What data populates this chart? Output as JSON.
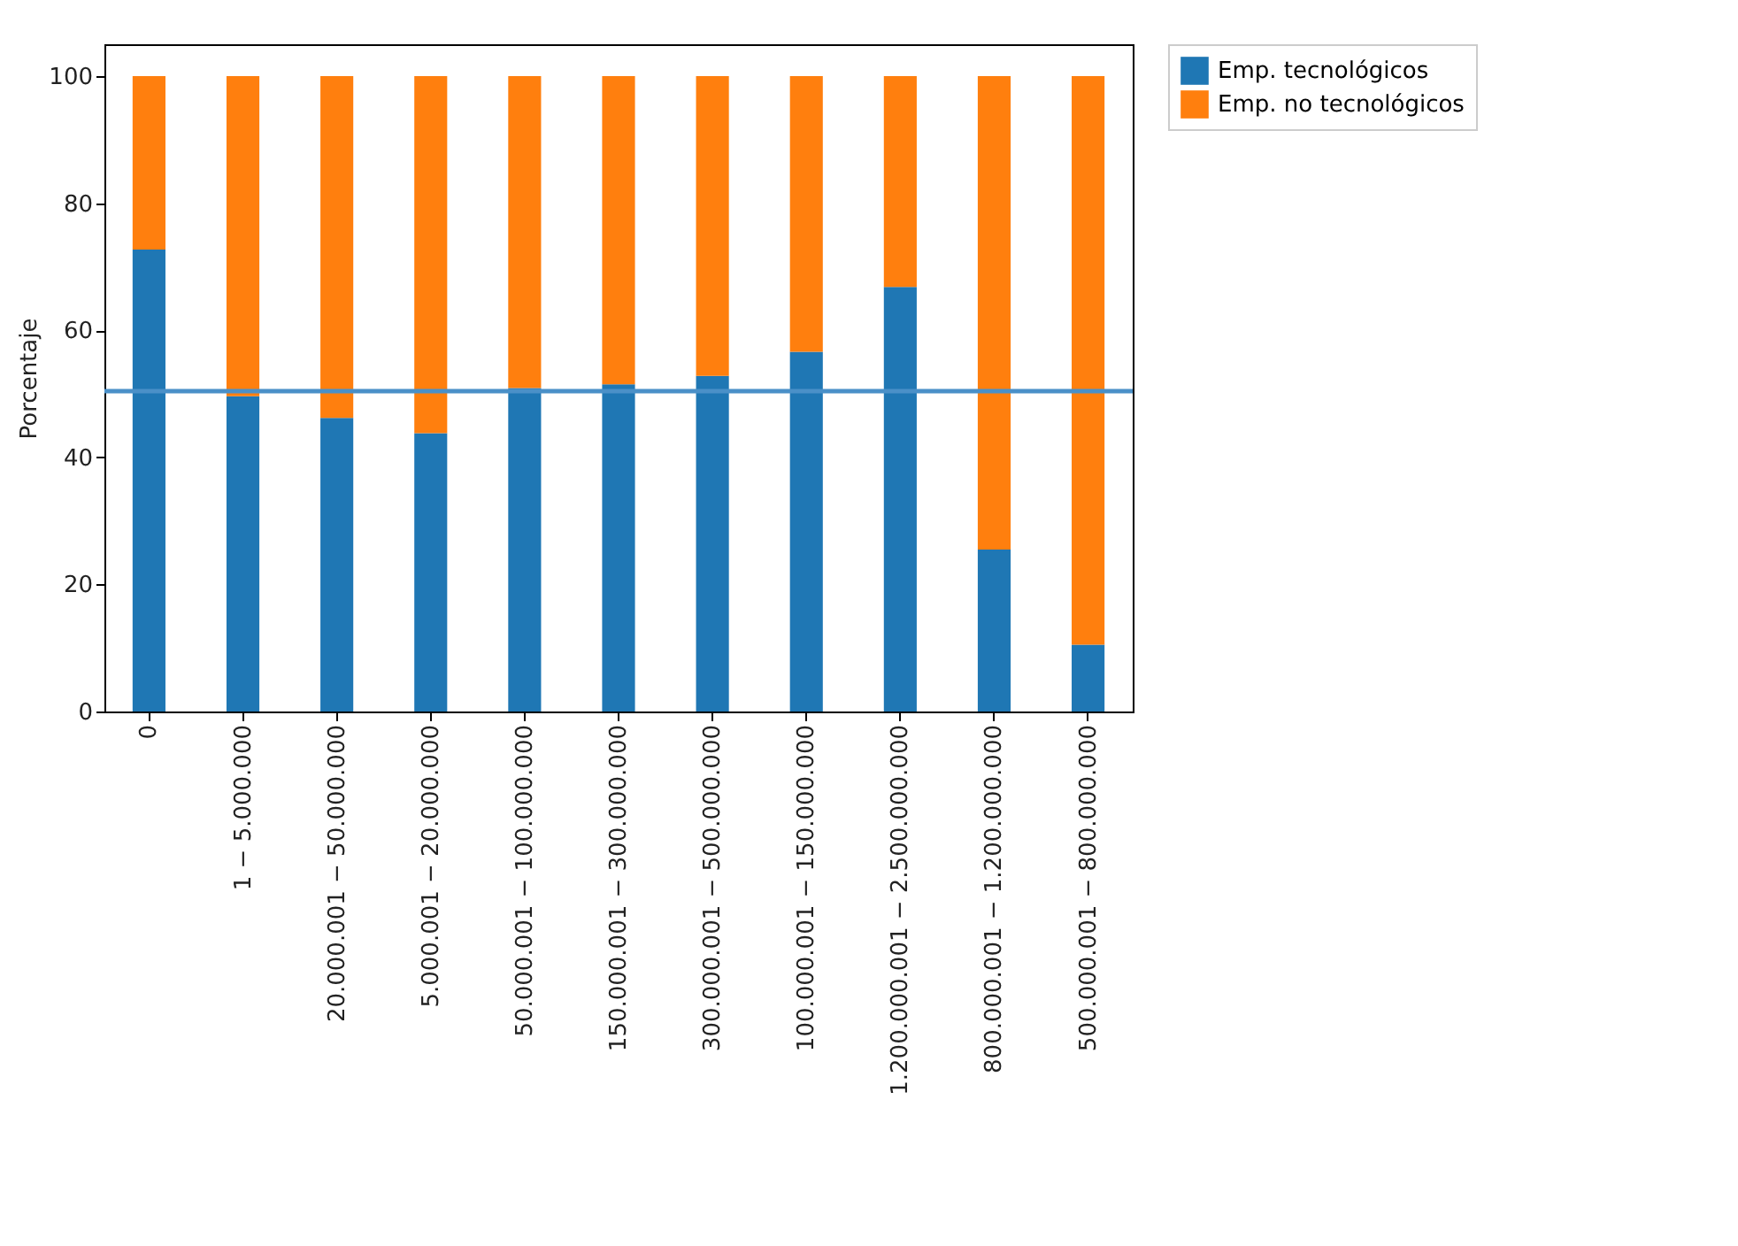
{
  "chart_data": {
    "type": "bar",
    "stacked": true,
    "ylabel": "Porcentaje",
    "categories": [
      "0",
      "1 − 5.000.000",
      "20.000.001 − 50.000.000",
      "5.000.001 − 20.000.000",
      "50.000.001 − 100.000.000",
      "150.000.001 − 300.000.000",
      "300.000.001 − 500.000.000",
      "100.000.001 − 150.000.000",
      "1.200.000.001 − 2.500.000.000",
      "800.000.001 − 1.200.000.000",
      "500.000.001 − 800.000.000"
    ],
    "series": [
      {
        "name": "Emp. tecnológicos",
        "color": "#1f77b4",
        "values": [
          72.7,
          49.6,
          46.2,
          43.8,
          50.9,
          51.5,
          52.8,
          56.6,
          66.8,
          25.5,
          10.5
        ]
      },
      {
        "name": "Emp. no tecnológicos",
        "color": "#ff7f0e",
        "values": [
          27.3,
          50.4,
          53.8,
          56.2,
          49.1,
          48.5,
          47.2,
          43.4,
          33.2,
          74.5,
          89.5
        ]
      }
    ],
    "ylim": [
      0,
      105
    ],
    "yticks": [
      0,
      20,
      40,
      60,
      80,
      100
    ],
    "grid": false,
    "legend": "top right",
    "ref_lines": [
      {
        "axis": "y",
        "value": 50.4,
        "color": "#4a90c8"
      }
    ]
  }
}
